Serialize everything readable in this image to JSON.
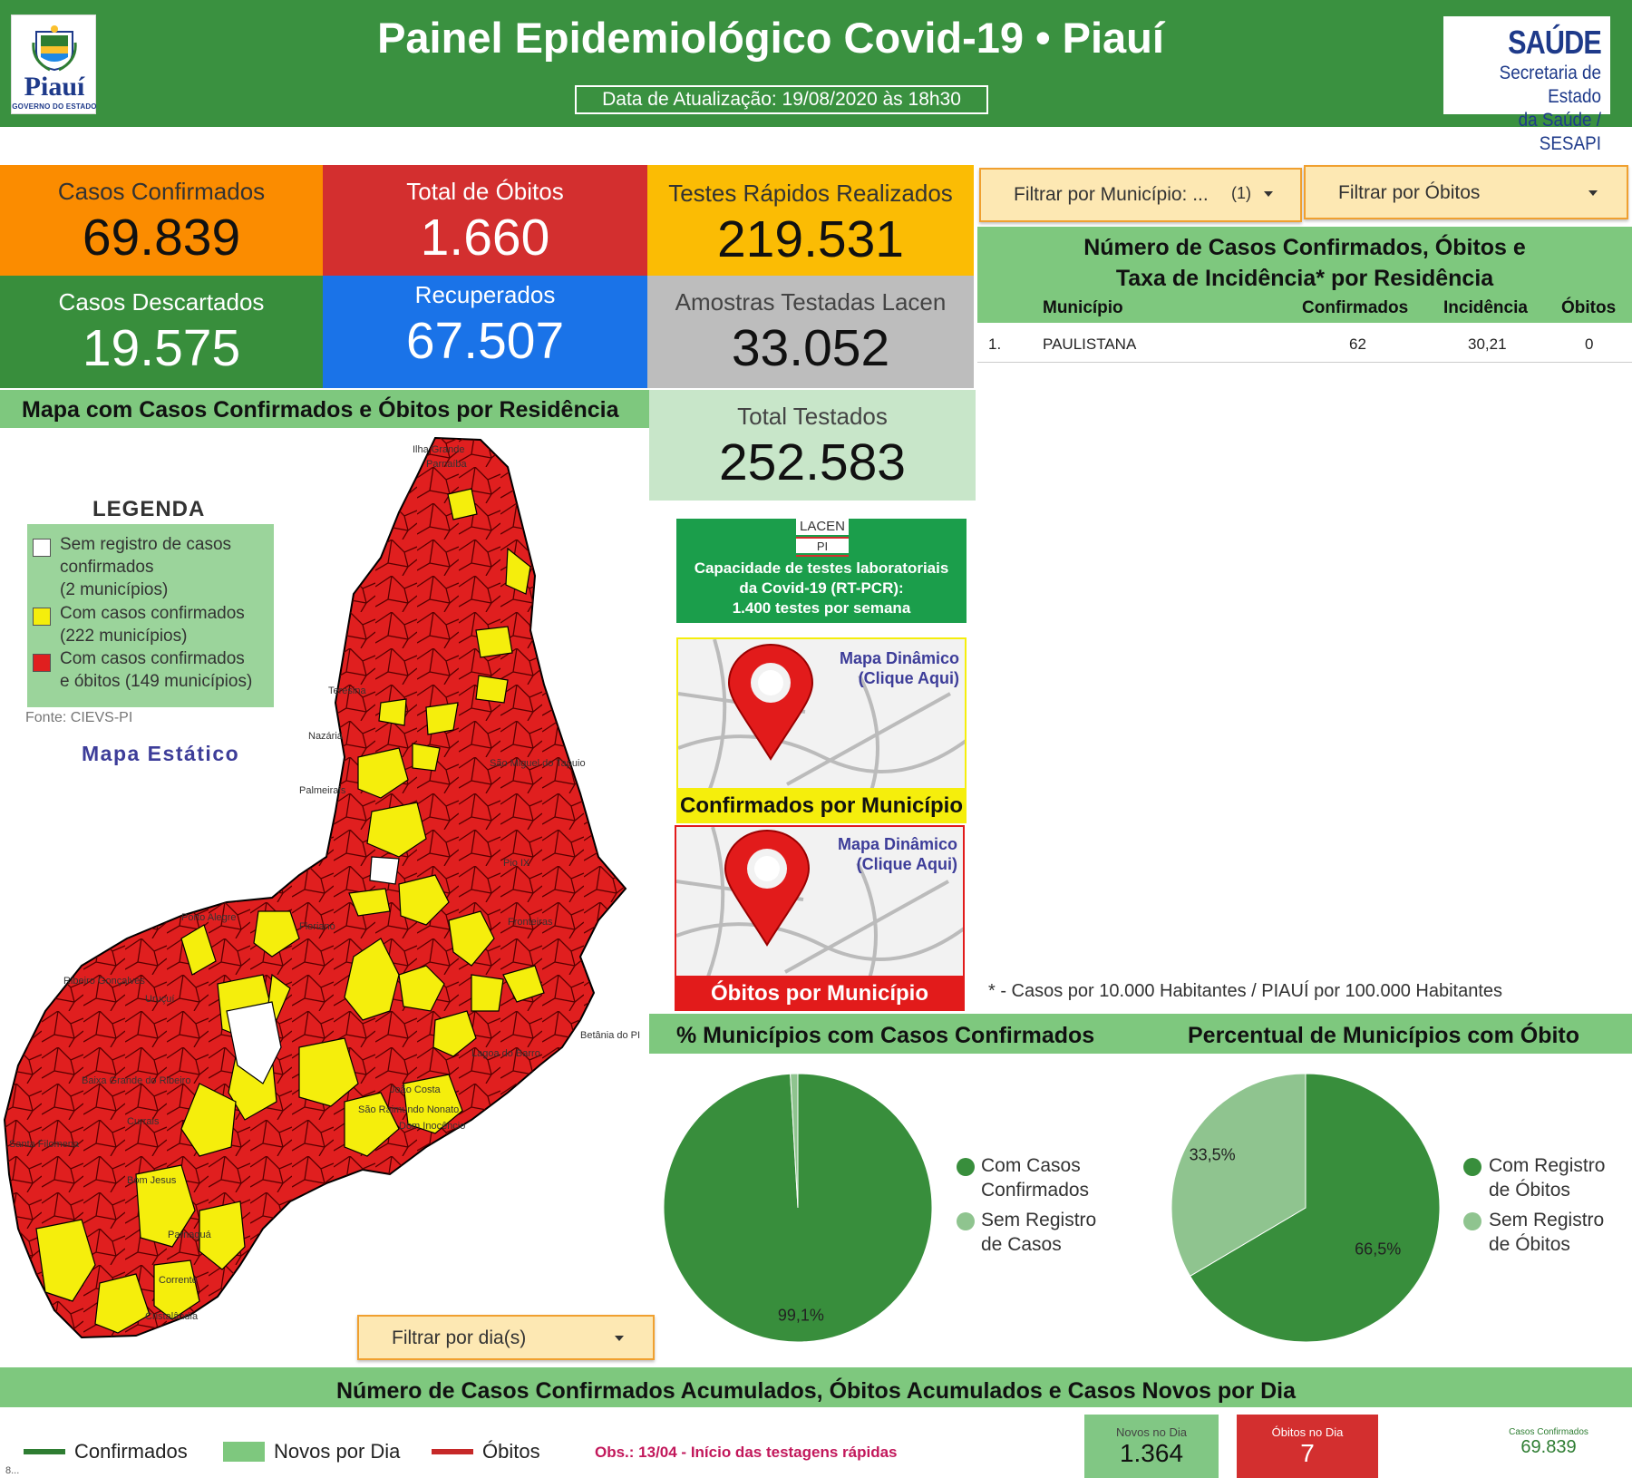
{
  "header": {
    "title": "Painel Epidemiológico Covid-19 • Piauí",
    "update": "Data de Atualização: 19/08/2020 às 18h30",
    "gov_logo": {
      "name": "Piauí",
      "sub": "GOVERNO DO ESTADO"
    },
    "sesapi": {
      "line1": "SAÚDE",
      "line2": "Secretaria de Estado",
      "line3": "da Saúde / SESAPI"
    }
  },
  "stats": {
    "casos_confirmados": {
      "label": "Casos Confirmados",
      "value": "69.839"
    },
    "total_obitos": {
      "label": "Total de Óbitos",
      "value": "1.660"
    },
    "testes_rapidos": {
      "label": "Testes Rápidos Realizados",
      "value": "219.531"
    },
    "casos_descartados": {
      "label": "Casos Descartados",
      "value": "19.575"
    },
    "recuperados": {
      "label": "Recuperados",
      "value": "67.507"
    },
    "amostras_lacen": {
      "label": "Amostras Testadas Lacen",
      "value": "33.052"
    },
    "total_testados": {
      "label": "Total Testados",
      "value": "252.583"
    }
  },
  "filters": {
    "municipio": {
      "label": "Filtrar por Município: ...",
      "count": "(1)"
    },
    "obitos": {
      "label": "Filtrar por Óbitos"
    },
    "dia": {
      "label": "Filtrar por dia(s)"
    }
  },
  "table": {
    "title_l1": "Número de Casos Confirmados, Óbitos e",
    "title_l2": "Taxa de Incidência* por Residência",
    "columns": [
      "Município",
      "Confirmados",
      "Incidência",
      "Óbitos"
    ],
    "rows": [
      {
        "idx": "1.",
        "municipio": "PAULISTANA",
        "confirmados": "62",
        "incidencia": "30,21",
        "obitos": "0"
      }
    ],
    "footnote": "* - Casos por 10.000 Habitantes / PIAUÍ por 100.000 Habitantes"
  },
  "map": {
    "title": "Mapa com Casos Confirmados e Óbitos por Residência",
    "legend_title": "LEGENDA",
    "legend": [
      {
        "l1": "Sem registro de casos",
        "l2": "confirmados",
        "l3": "(2 municípios)",
        "color": "#ffffff"
      },
      {
        "l1": "Com casos confirmados",
        "l2": "(222 municípios)",
        "l3": "",
        "color": "#f5ee0c"
      },
      {
        "l1": "Com casos confirmados",
        "l2": "e óbitos (149 municípios)",
        "l3": "",
        "color": "#e01f1f"
      }
    ],
    "source": "Fonte: CIEVS-PI",
    "static_label": "Mapa Estático"
  },
  "lacen": {
    "logo_top": "LACEN",
    "logo_bottom": "PI",
    "line1": "Capacidade de testes laboratoriais",
    "line2": "da Covid-19 (RT-PCR):",
    "line3": "1.400 testes por semana"
  },
  "map_links": [
    {
      "top1": "Mapa Dinâmico",
      "top2": "(Clique Aqui)",
      "bottom": "Confirmados por Município"
    },
    {
      "top1": "Mapa Dinâmico",
      "top2": "(Clique Aqui)",
      "bottom": "Óbitos por Município"
    }
  ],
  "colors": {
    "header_green": "#3a9140",
    "orange": "#fb8c00",
    "red": "#d32f2f",
    "yellow": "#fbbc04",
    "green": "#388e3c",
    "blue": "#1a73e8",
    "grey": "#bdbdbd",
    "light_green": "#c8e6c9",
    "pie_dark": "#388e3c",
    "pie_light": "#8fc48f"
  },
  "pie1": {
    "title": "% Municípios com Casos Confirmados",
    "slices": [
      {
        "name": "Com Casos Confirmados",
        "l1": "Com Casos",
        "l2": "Confirmados",
        "value": 99.1,
        "label": "99,1%"
      },
      {
        "name": "Sem Registro de Casos",
        "l1": "Sem Registro",
        "l2": "de Casos",
        "value": 0.9,
        "label": ""
      }
    ]
  },
  "pie2": {
    "title": "Percentual de Municípios com Óbito",
    "slices": [
      {
        "name": "Com Registro de Óbitos",
        "l1": "Com Registro",
        "l2": "de Óbitos",
        "value": 66.5,
        "label": "66,5%"
      },
      {
        "name": "Sem Registro de Óbitos",
        "l1": "Sem Registro",
        "l2": "de Óbitos",
        "value": 33.5,
        "label": "33,5%"
      }
    ]
  },
  "chart_data": [
    {
      "type": "pie",
      "title": "% Municípios com Casos Confirmados",
      "labels": [
        "Com Casos Confirmados",
        "Sem Registro de Casos"
      ],
      "values": [
        99.1,
        0.9
      ],
      "legend": "right"
    },
    {
      "type": "pie",
      "title": "Percentual de Municípios com Óbito",
      "labels": [
        "Com Registro de Óbitos",
        "Sem Registro de Óbitos"
      ],
      "values": [
        66.5,
        33.5
      ],
      "legend": "right"
    }
  ],
  "bottom": {
    "title": "Número de Casos Confirmados Acumulados, Óbitos Acumulados e Casos Novos por Dia",
    "legend": [
      "Confirmados",
      "Novos por Dia",
      "Óbitos"
    ],
    "obs": "Obs.: 13/04 - Início das testagens rápidas",
    "novos_dia": {
      "label": "Novos no Dia",
      "value": "1.364"
    },
    "obitos_dia": {
      "label": "Óbitos no Dia",
      "value": "7"
    },
    "casos_conf": {
      "label": "Casos Confirmados",
      "value": "69.839"
    },
    "axis_stub": "8..."
  }
}
